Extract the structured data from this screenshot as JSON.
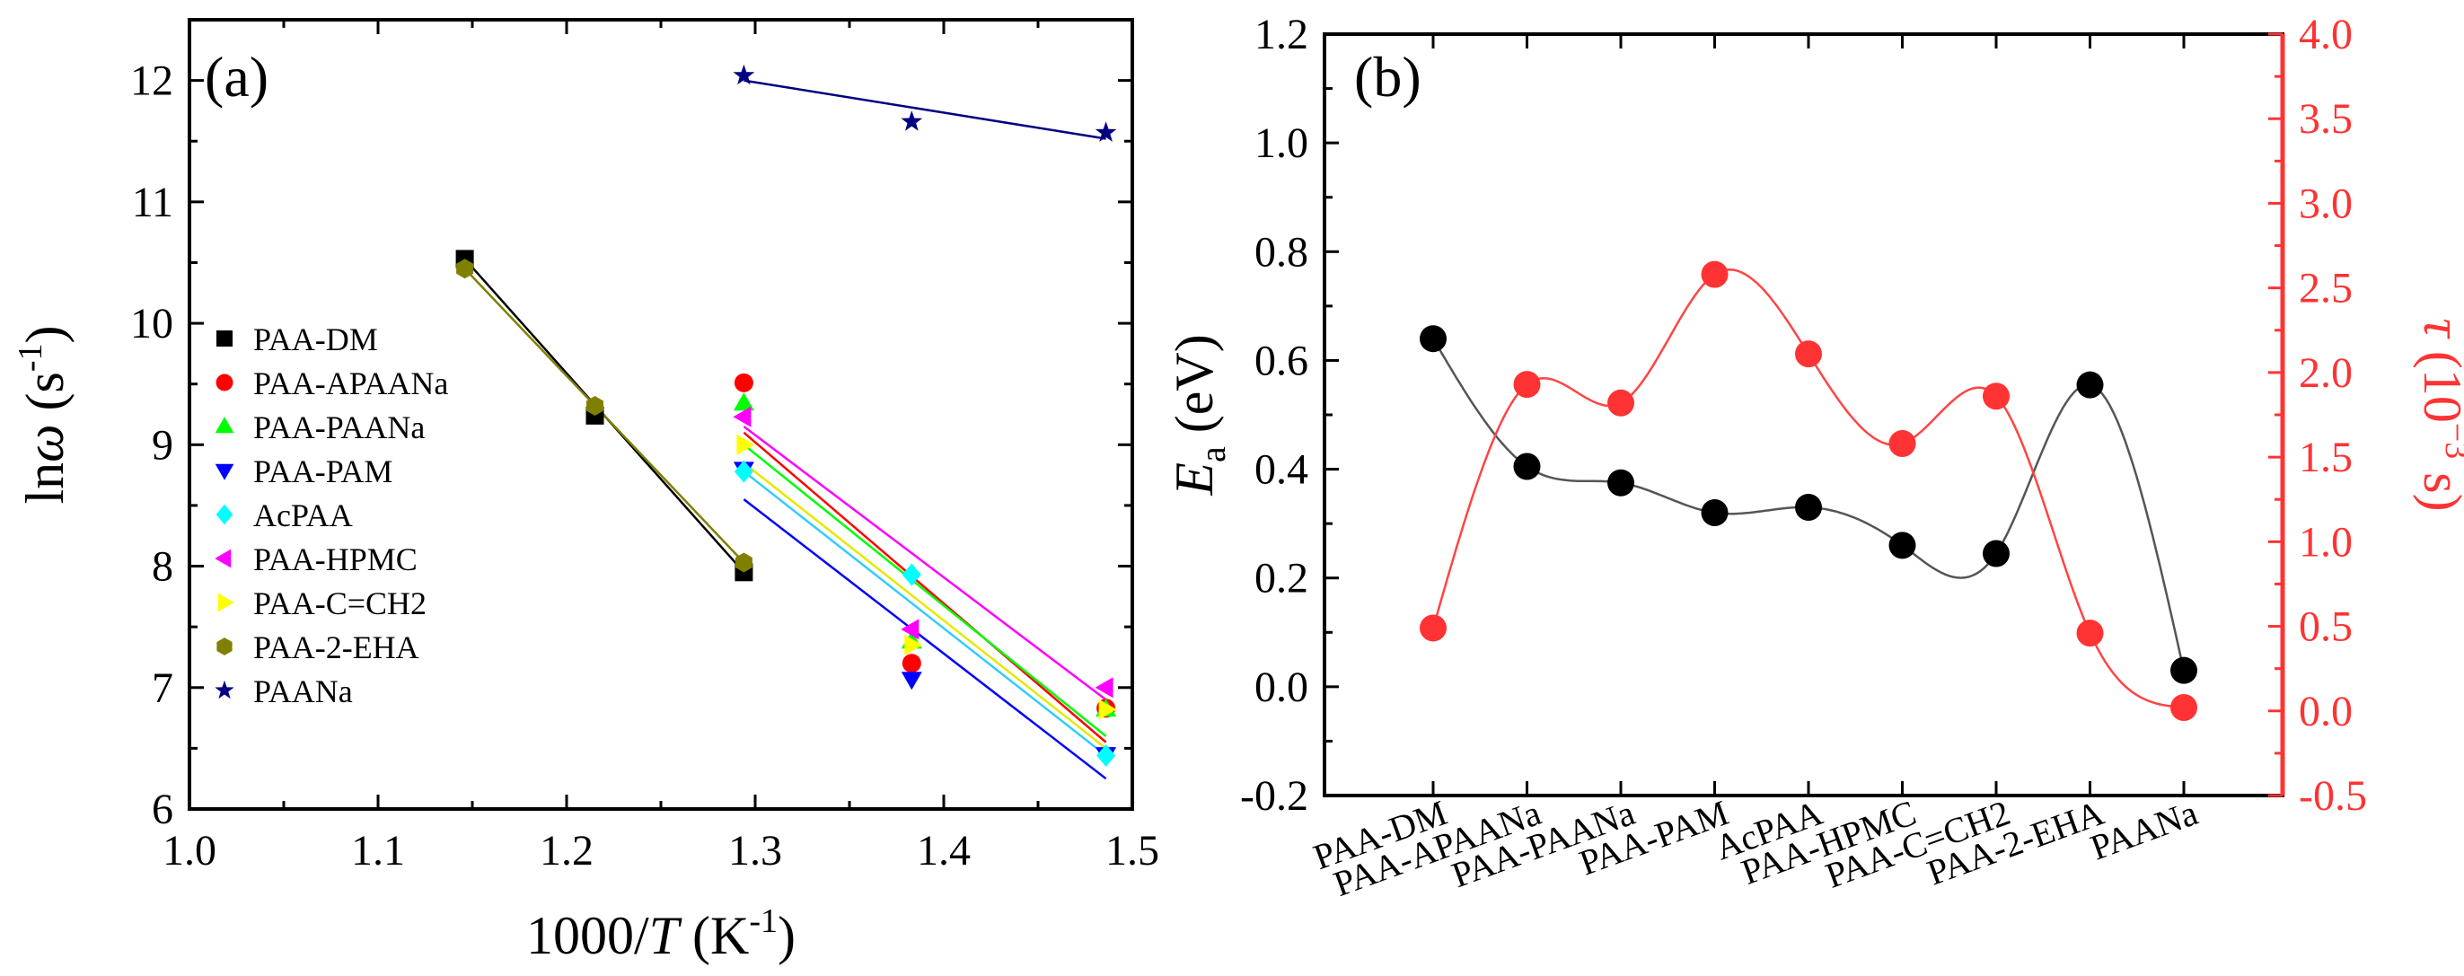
{
  "chart_data": [
    {
      "type": "scatter",
      "panel_label": "(a)",
      "xlabel": {
        "main": "1000/",
        "italic": "T",
        "unit_open": " (K",
        "sup": "-1",
        "unit_close": ")"
      },
      "ylabel": {
        "prefix": "ln",
        "italic": "ω",
        "unit_open": " (s",
        "sup": "-1",
        "unit_close": ")"
      },
      "xlim": [
        1.0,
        1.5
      ],
      "ylim": [
        6,
        12.5
      ],
      "x_ticks": [
        1.0,
        1.1,
        1.2,
        1.3,
        1.4,
        1.5
      ],
      "x_tick_labels": [
        "1.0",
        "1.1",
        "1.2",
        "1.3",
        "1.4",
        "1.5"
      ],
      "y_ticks": [
        6,
        7,
        8,
        9,
        10,
        11,
        12
      ],
      "y_tick_labels": [
        "6",
        "7",
        "8",
        "9",
        "10",
        "11",
        "12"
      ],
      "legend_position": "left",
      "series": [
        {
          "name": "PAA-DM",
          "marker": "square",
          "color": "#000000",
          "x": [
            1.146,
            1.215,
            1.294
          ],
          "y": [
            10.53,
            9.24,
            7.95
          ],
          "fit": {
            "x": [
              1.146,
              1.294
            ],
            "y": [
              10.53,
              7.95
            ]
          }
        },
        {
          "name": "PAA-APAANa",
          "marker": "circle",
          "color": "#ff0000",
          "x": [
            1.294,
            1.383,
            1.486
          ],
          "y": [
            9.51,
            7.2,
            6.83
          ],
          "fit": {
            "x": [
              1.294,
              1.486
            ],
            "y": [
              9.1,
              6.55
            ]
          }
        },
        {
          "name": "PAA-PAANa",
          "marker": "triangle-up",
          "color": "#00ff00",
          "x": [
            1.294,
            1.383,
            1.486
          ],
          "y": [
            9.34,
            7.38,
            6.82
          ],
          "fit": {
            "x": [
              1.294,
              1.486
            ],
            "y": [
              9.0,
              6.6
            ]
          }
        },
        {
          "name": "PAA-PAM",
          "marker": "triangle-down",
          "color": "#0000ff",
          "x": [
            1.294,
            1.383,
            1.486
          ],
          "y": [
            8.8,
            7.07,
            6.45
          ],
          "fit": {
            "x": [
              1.294,
              1.486
            ],
            "y": [
              8.55,
              6.25
            ]
          }
        },
        {
          "name": "AcPAA",
          "marker": "diamond",
          "color": "#00ffff",
          "x": [
            1.294,
            1.383,
            1.486
          ],
          "y": [
            8.78,
            7.93,
            6.44
          ],
          "fit": {
            "x": [
              1.294,
              1.486
            ],
            "y": [
              8.78,
              6.44
            ]
          }
        },
        {
          "name": "PAA-HPMC",
          "marker": "triangle-left",
          "color": "#ff00ff",
          "x": [
            1.294,
            1.383,
            1.486
          ],
          "y": [
            9.23,
            7.48,
            7.0
          ],
          "fit": {
            "x": [
              1.294,
              1.486
            ],
            "y": [
              9.15,
              6.9
            ]
          }
        },
        {
          "name": "PAA-C=CH2",
          "marker": "triangle-right",
          "color": "#ffff00",
          "x": [
            1.294,
            1.383,
            1.486
          ],
          "y": [
            9.0,
            7.35,
            6.82
          ],
          "fit": {
            "x": [
              1.294,
              1.486
            ],
            "y": [
              8.85,
              6.5
            ]
          }
        },
        {
          "name": "PAA-2-EHA",
          "marker": "hexagon",
          "color": "#808000",
          "x": [
            1.146,
            1.215,
            1.294
          ],
          "y": [
            10.45,
            9.32,
            8.03
          ],
          "fit": {
            "x": [
              1.146,
              1.294
            ],
            "y": [
              10.45,
              8.03
            ]
          }
        },
        {
          "name": "PAANa",
          "marker": "star",
          "color": "#000080",
          "x": [
            1.294,
            1.383,
            1.486
          ],
          "y": [
            12.04,
            11.66,
            11.57
          ],
          "fit": {
            "x": [
              1.294,
              1.486
            ],
            "y": [
              12.0,
              11.52
            ]
          }
        }
      ]
    },
    {
      "type": "line",
      "panel_label": "(b)",
      "categories": [
        "PAA-DM",
        "PAA-APAANa",
        "PAA-PAANa",
        "PAA-PAM",
        "AcPAA",
        "PAA-HPMC",
        "PAA-C=CH2",
        "PAA-2-EHA",
        "PAANa"
      ],
      "ylabel_left": {
        "italic": "E",
        "sub": "a",
        "rest": " (eV)"
      },
      "ylabel_right": {
        "italic": "τ",
        "open": " (10",
        "sup": "−3",
        "close": " s)"
      },
      "ylim_left": [
        -0.2,
        1.2
      ],
      "y_ticks_left": [
        -0.2,
        0.0,
        0.2,
        0.4,
        0.6,
        0.8,
        1.0,
        1.2
      ],
      "y_tick_labels_left": [
        "-0.2",
        "0.0",
        "0.2",
        "0.4",
        "0.6",
        "0.8",
        "1.0",
        "1.2"
      ],
      "ylim_right": [
        -0.5,
        4.0
      ],
      "y_ticks_right": [
        -0.5,
        0.0,
        0.5,
        1.0,
        1.5,
        2.0,
        2.5,
        3.0,
        3.5,
        4.0
      ],
      "y_tick_labels_right": [
        "-0.5",
        "0.0",
        "0.5",
        "1.0",
        "1.5",
        "2.0",
        "2.5",
        "3.0",
        "3.5",
        "4.0"
      ],
      "right_axis_color": "#ff3333",
      "series": [
        {
          "axis": "left",
          "color": "#000000",
          "line_color": "#555555",
          "values": [
            0.64,
            0.405,
            0.375,
            0.32,
            0.33,
            0.26,
            0.245,
            0.555,
            0.03
          ]
        },
        {
          "axis": "right",
          "color": "#ff3333",
          "line_color": "#ff4444",
          "values": [
            0.49,
            1.93,
            1.82,
            2.58,
            2.11,
            1.58,
            1.86,
            0.46,
            0.02
          ]
        }
      ]
    }
  ]
}
